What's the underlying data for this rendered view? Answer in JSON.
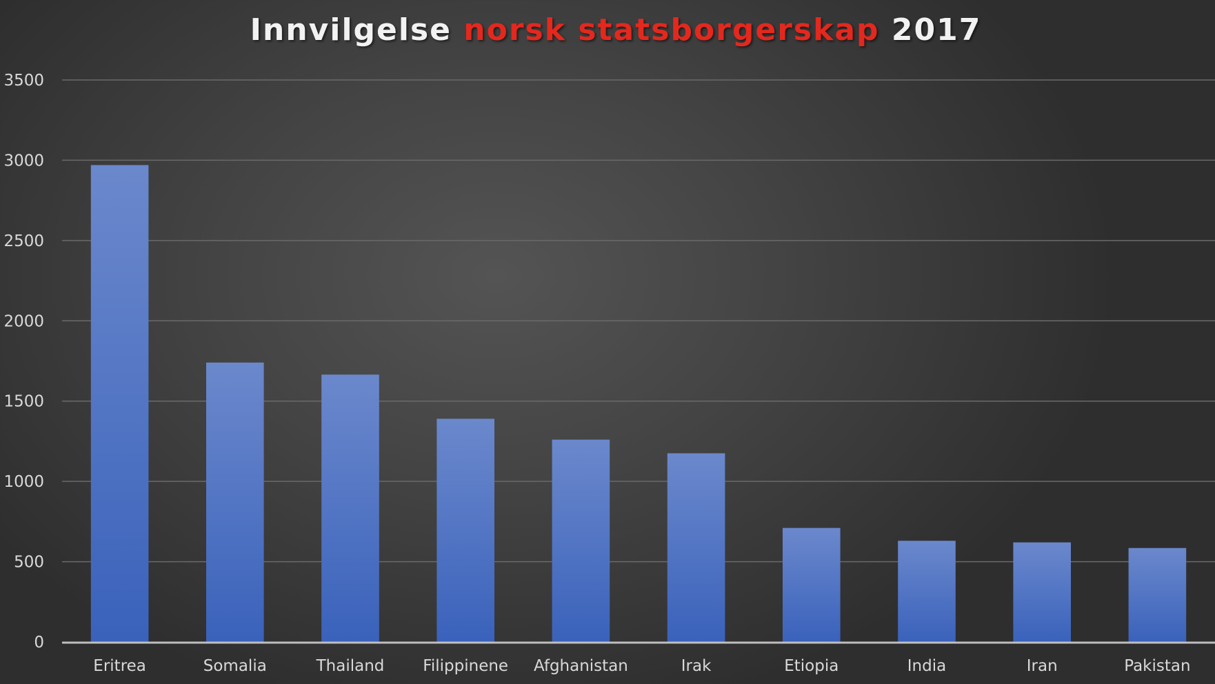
{
  "chart_data": {
    "type": "bar",
    "title_parts": [
      "Innvilgelse ",
      "norsk statsborgerskap",
      " 2017"
    ],
    "title": "Innvilgelse norsk statsborgerskap 2017",
    "categories": [
      "Eritrea",
      "Somalia",
      "Thailand",
      "Filippinene",
      "Afghanistan",
      "Irak",
      "Etiopia",
      "India",
      "Iran",
      "Pakistan"
    ],
    "values": [
      2970,
      1740,
      1665,
      1390,
      1260,
      1175,
      710,
      630,
      620,
      585
    ],
    "xlabel": "",
    "ylabel": "",
    "ylim": [
      0,
      3500
    ],
    "yticks": [
      0,
      500,
      1000,
      1500,
      2000,
      2500,
      3000,
      3500
    ],
    "grid": true,
    "legend": "none",
    "colors": {
      "bar_top": "#6b88cc",
      "bar_bottom": "#3a62bb",
      "title_accent": "#e3281e",
      "title_main": "#f2f2f2",
      "gridline": "#6a6a6a",
      "axis": "#bfbfbf",
      "label": "#d9d9d9"
    }
  }
}
